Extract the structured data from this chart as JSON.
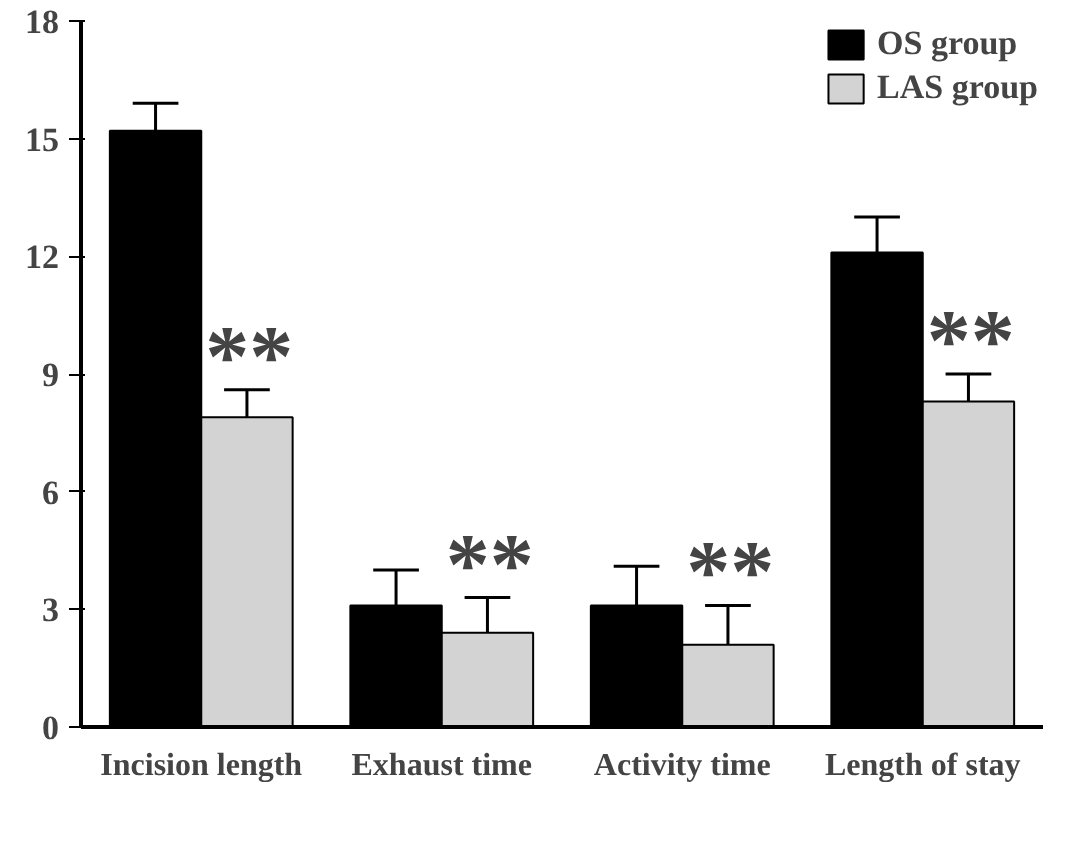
{
  "chart_data": {
    "type": "bar",
    "categories": [
      "Incision length",
      "Exhaust time",
      "Activity time",
      "Length of stay"
    ],
    "series": [
      {
        "name": "OS group",
        "color": "#000000",
        "values": [
          15.2,
          3.1,
          3.1,
          12.1
        ],
        "errors": [
          0.7,
          0.9,
          1.0,
          0.9
        ]
      },
      {
        "name": "LAS group",
        "color": "#d3d3d3",
        "values": [
          7.9,
          2.4,
          2.1,
          8.3
        ],
        "errors": [
          0.7,
          0.9,
          1.0,
          0.7
        ]
      }
    ],
    "ylim": [
      0,
      18
    ],
    "yticks": [
      0,
      3,
      6,
      9,
      12,
      15,
      18
    ],
    "grid": false,
    "legend": "top right",
    "annotations": [
      {
        "text": "**",
        "x": "Incision length",
        "y": 8.6
      },
      {
        "text": "**",
        "x": "Exhaust time",
        "y": 3.3
      },
      {
        "text": "**",
        "x": "Activity time",
        "y": 3.1
      },
      {
        "text": "**",
        "x": "Length of stay",
        "y": 9.0
      }
    ]
  }
}
